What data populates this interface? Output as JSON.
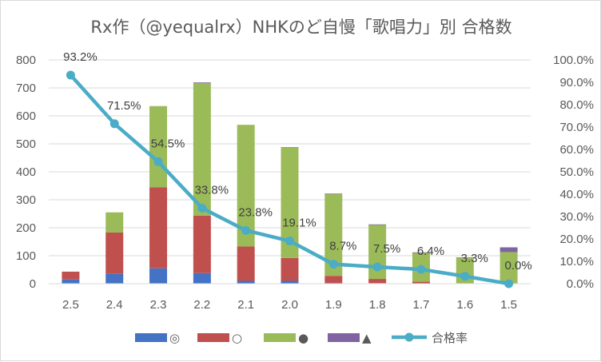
{
  "chart_data": {
    "type": "bar",
    "title": "Rx作（@yequalrx）NHKのど自慢「歌唱力」別 合格数",
    "categories": [
      "2.5",
      "2.4",
      "2.3",
      "2.2",
      "2.1",
      "2.0",
      "1.9",
      "1.8",
      "1.7",
      "1.6",
      "1.5"
    ],
    "series": [
      {
        "name": "◎",
        "color": "#4472c4",
        "values": [
          15,
          35,
          55,
          38,
          10,
          10,
          3,
          2,
          1,
          0,
          0
        ]
      },
      {
        "name": "○",
        "color": "#c0504d",
        "values": [
          28,
          148,
          290,
          205,
          123,
          82,
          25,
          15,
          6,
          2,
          0
        ]
      },
      {
        "name": "●",
        "color": "#9bbb59",
        "values": [
          0,
          72,
          290,
          475,
          435,
          394,
          292,
          193,
          103,
          90,
          113
        ]
      },
      {
        "name": "▲",
        "color": "#8064a2",
        "values": [
          0,
          0,
          0,
          2,
          0,
          2,
          2,
          2,
          2,
          2,
          17
        ]
      }
    ],
    "line": {
      "name": "合格率",
      "color": "#4bacc6",
      "values": [
        93.2,
        71.5,
        54.5,
        33.8,
        23.8,
        19.1,
        8.7,
        7.5,
        6.4,
        3.3,
        0.0
      ],
      "labels": [
        "93.2%",
        "71.5%",
        "54.5%",
        "33.8%",
        "23.8%",
        "19.1%",
        "8.7%",
        "7.5%",
        "6.4%",
        "3.3%",
        "0.0%"
      ]
    },
    "y_left": {
      "min": 0,
      "max": 800,
      "ticks": [
        "0",
        "100",
        "200",
        "300",
        "400",
        "500",
        "600",
        "700",
        "800"
      ]
    },
    "y_right": {
      "min": 0,
      "max": 100,
      "ticks": [
        "0.0%",
        "10.0%",
        "20.0%",
        "30.0%",
        "40.0%",
        "50.0%",
        "60.0%",
        "70.0%",
        "80.0%",
        "90.0%",
        "100.0%"
      ]
    },
    "grid": true,
    "legend_position": "bottom"
  }
}
